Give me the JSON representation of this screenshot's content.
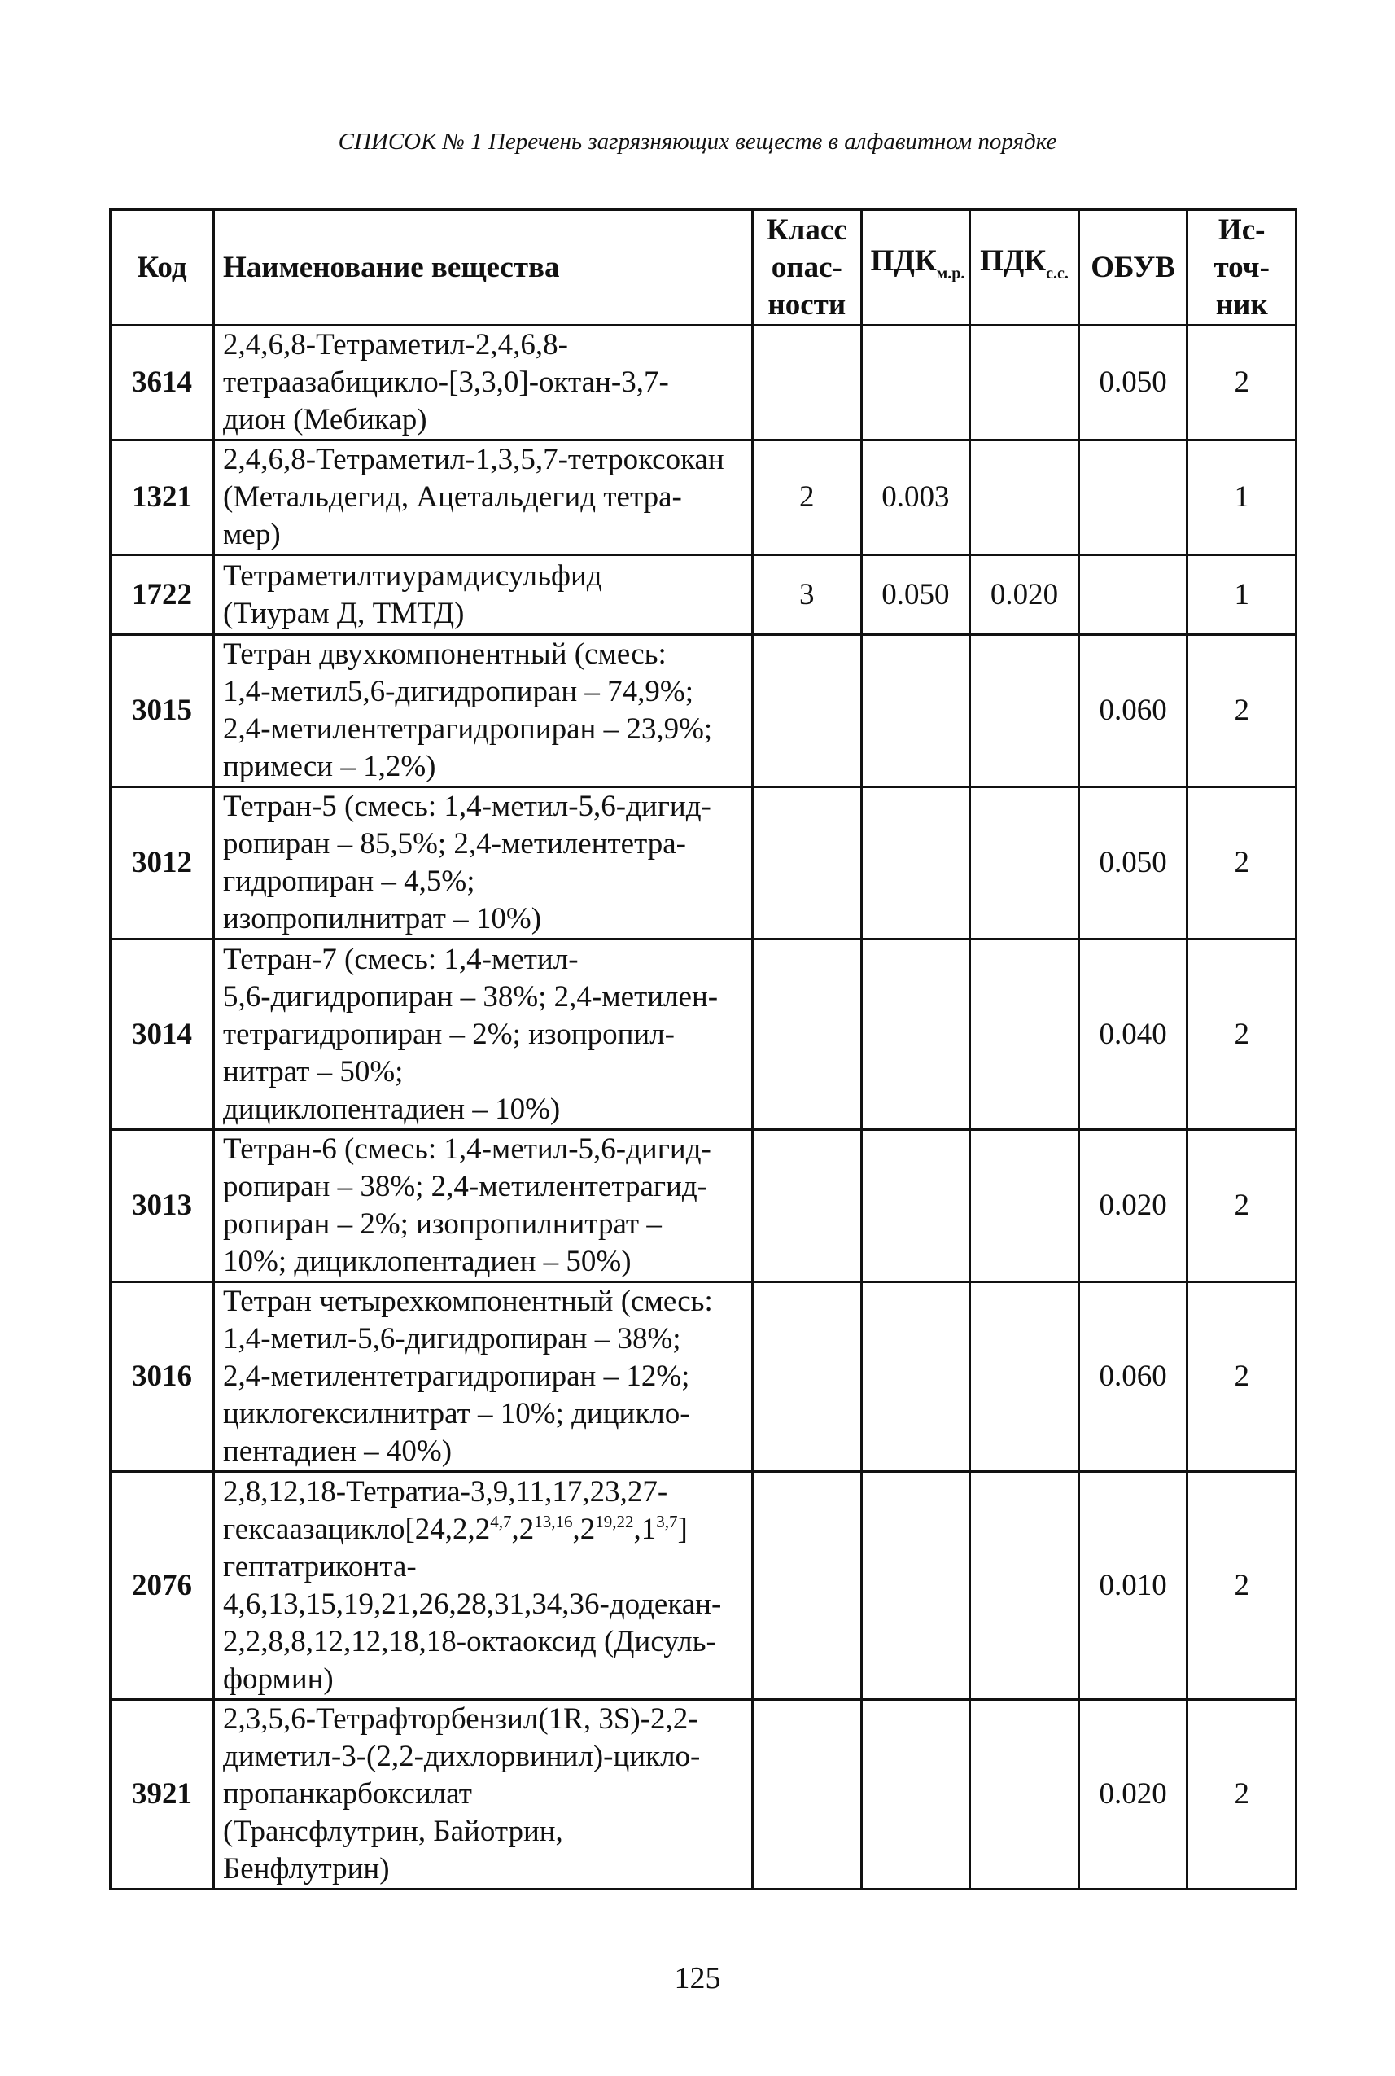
{
  "title": "СПИСОК № 1   Перечень загрязняющих веществ в алфавитном порядке",
  "headers": {
    "code": "Код",
    "name": "Наименование вещества",
    "hazard_class": [
      "Класс",
      "опас-",
      "ности"
    ],
    "pdk_mr": {
      "main": "ПДК",
      "sub": "м.р."
    },
    "pdk_ss": {
      "main": "ПДК",
      "sub": "с.с."
    },
    "obuv": "ОБУВ",
    "source": [
      "Ис-",
      "точ-",
      "ник"
    ]
  },
  "rows": [
    {
      "code": "3614",
      "name": [
        [
          {
            "t": "2,4,6,8-Тетраметил-2,4,6,8-"
          }
        ],
        [
          {
            "t": "тетраазабицикло-[3,3,0]-октан-3,7-"
          }
        ],
        [
          {
            "t": "дион (Мебикар)"
          }
        ]
      ],
      "hazard_class": "",
      "pdk_mr": "",
      "pdk_ss": "",
      "obuv": "0.050",
      "source": "2"
    },
    {
      "code": "1321",
      "name": [
        [
          {
            "t": "2,4,6,8-Тетраметил-1,3,5,7-тетроксокан"
          }
        ],
        [
          {
            "t": "(Метальдегид, Ацетальдегид тетра-"
          }
        ],
        [
          {
            "t": "мер)"
          }
        ]
      ],
      "hazard_class": "2",
      "pdk_mr": "0.003",
      "pdk_ss": "",
      "obuv": "",
      "source": "1"
    },
    {
      "code": "1722",
      "name": [
        [
          {
            "t": "Тетраметилтиурамдисульфид"
          }
        ],
        [
          {
            "t": "(Тиурам Д, ТМТД)"
          }
        ]
      ],
      "hazard_class": "3",
      "pdk_mr": "0.050",
      "pdk_ss": "0.020",
      "obuv": "",
      "source": "1"
    },
    {
      "code": "3015",
      "name": [
        [
          {
            "t": "Тетран двухкомпонентный (смесь:"
          }
        ],
        [
          {
            "t": "1,4-метил5,6-дигидропиран – 74,9%;"
          }
        ],
        [
          {
            "t": "2,4-метилентетрагидропиран – 23,9%;"
          }
        ],
        [
          {
            "t": "примеси – 1,2%)"
          }
        ]
      ],
      "hazard_class": "",
      "pdk_mr": "",
      "pdk_ss": "",
      "obuv": "0.060",
      "source": "2"
    },
    {
      "code": "3012",
      "name": [
        [
          {
            "t": "Тетран-5 (смесь: 1,4-метил-5,6-дигид-"
          }
        ],
        [
          {
            "t": "ропиран – 85,5%; 2,4-метилентетра-"
          }
        ],
        [
          {
            "t": "гидропиран – 4,5%;"
          }
        ],
        [
          {
            "t": "изопропилнитрат – 10%)"
          }
        ]
      ],
      "hazard_class": "",
      "pdk_mr": "",
      "pdk_ss": "",
      "obuv": "0.050",
      "source": "2"
    },
    {
      "code": "3014",
      "name": [
        [
          {
            "t": "Тетран-7 (смесь: 1,4-метил-"
          }
        ],
        [
          {
            "t": "5,6-дигидропиран – 38%; 2,4-метилен-"
          }
        ],
        [
          {
            "t": "тетрагидропиран – 2%; изопропил-"
          }
        ],
        [
          {
            "t": "нитрат – 50%;"
          }
        ],
        [
          {
            "t": "дициклопентадиен – 10%)"
          }
        ]
      ],
      "hazard_class": "",
      "pdk_mr": "",
      "pdk_ss": "",
      "obuv": "0.040",
      "source": "2"
    },
    {
      "code": "3013",
      "name": [
        [
          {
            "t": "Тетран-6 (смесь:  1,4-метил-5,6-дигид-"
          }
        ],
        [
          {
            "t": "ропиран – 38%; 2,4-метилентетрагид-"
          }
        ],
        [
          {
            "t": "ропиран – 2%; изопропилнитрат –"
          }
        ],
        [
          {
            "t": "10%; дициклопентадиен – 50%)"
          }
        ]
      ],
      "hazard_class": "",
      "pdk_mr": "",
      "pdk_ss": "",
      "obuv": "0.020",
      "source": "2"
    },
    {
      "code": "3016",
      "name": [
        [
          {
            "t": "Тетран четырехкомпонентный (смесь:"
          }
        ],
        [
          {
            "t": "1,4-метил-5,6-дигидропиран – 38%;"
          }
        ],
        [
          {
            "t": "2,4-метилентетрагидропиран – 12%;"
          }
        ],
        [
          {
            "t": "циклогексилнитрат – 10%; дицикло-"
          }
        ],
        [
          {
            "t": "пентадиен – 40%)"
          }
        ]
      ],
      "hazard_class": "",
      "pdk_mr": "",
      "pdk_ss": "",
      "obuv": "0.060",
      "source": "2"
    },
    {
      "code": "2076",
      "name": [
        [
          {
            "t": "2,8,12,18-Тетратиа-3,9,11,17,23,27-"
          }
        ],
        [
          {
            "t": "гексаазацикло[24,2,2"
          },
          {
            "t": "4,7",
            "sup": true
          },
          {
            "t": ",2"
          },
          {
            "t": "13,16",
            "sup": true
          },
          {
            "t": ",2"
          },
          {
            "t": "19,22",
            "sup": true
          },
          {
            "t": ",1"
          },
          {
            "t": "3,7",
            "sup": true
          },
          {
            "t": "]"
          }
        ],
        [
          {
            "t": "гептатриконта-"
          }
        ],
        [
          {
            "t": "4,6,13,15,19,21,26,28,31,34,36-додекан-"
          }
        ],
        [
          {
            "t": "2,2,8,8,12,12,18,18-октаоксид (Дисуль-"
          }
        ],
        [
          {
            "t": "формин)"
          }
        ]
      ],
      "hazard_class": "",
      "pdk_mr": "",
      "pdk_ss": "",
      "obuv": "0.010",
      "source": "2"
    },
    {
      "code": "3921",
      "name": [
        [
          {
            "t": "2,3,5,6-Тетрафторбензил(1R, 3S)-2,2-"
          }
        ],
        [
          {
            "t": "диметил-3-(2,2-дихлорвинил)-цикло-"
          }
        ],
        [
          {
            "t": "пропанкарбоксилат"
          }
        ],
        [
          {
            "t": "(Трансфлутрин, Байотрин,"
          }
        ],
        [
          {
            "t": "Бенфлутрин)"
          }
        ]
      ],
      "hazard_class": "",
      "pdk_mr": "",
      "pdk_ss": "",
      "obuv": "0.020",
      "source": "2"
    }
  ],
  "page_number": "125"
}
